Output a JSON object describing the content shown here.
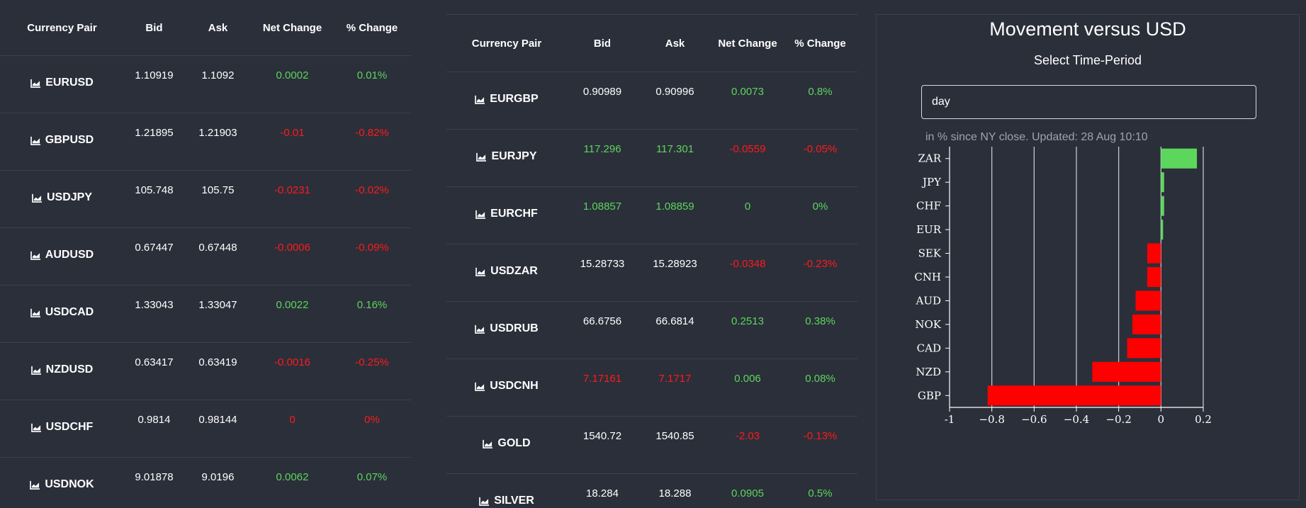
{
  "left_table": {
    "headers": [
      "Currency Pair",
      "Bid",
      "Ask",
      "Net Change",
      "% Change"
    ],
    "rows": [
      {
        "pair": "EURUSD",
        "bid": "1.10919",
        "ask": "1.1092",
        "net": "0.0002",
        "pct": "0.01%",
        "price_dir": "neu",
        "change_dir": "pos"
      },
      {
        "pair": "GBPUSD",
        "bid": "1.21895",
        "ask": "1.21903",
        "net": "-0.01",
        "pct": "-0.82%",
        "price_dir": "neu",
        "change_dir": "neg"
      },
      {
        "pair": "USDJPY",
        "bid": "105.748",
        "ask": "105.75",
        "net": "-0.0231",
        "pct": "-0.02%",
        "price_dir": "neu",
        "change_dir": "neg"
      },
      {
        "pair": "AUDUSD",
        "bid": "0.67447",
        "ask": "0.67448",
        "net": "-0.0006",
        "pct": "-0.09%",
        "price_dir": "neu",
        "change_dir": "neg"
      },
      {
        "pair": "USDCAD",
        "bid": "1.33043",
        "ask": "1.33047",
        "net": "0.0022",
        "pct": "0.16%",
        "price_dir": "neu",
        "change_dir": "pos"
      },
      {
        "pair": "NZDUSD",
        "bid": "0.63417",
        "ask": "0.63419",
        "net": "-0.0016",
        "pct": "-0.25%",
        "price_dir": "neu",
        "change_dir": "neg"
      },
      {
        "pair": "USDCHF",
        "bid": "0.9814",
        "ask": "0.98144",
        "net": "0",
        "pct": "0%",
        "price_dir": "neu",
        "change_dir": "neg"
      },
      {
        "pair": "USDNOK",
        "bid": "9.01878",
        "ask": "9.0196",
        "net": "0.0062",
        "pct": "0.07%",
        "price_dir": "neu",
        "change_dir": "pos"
      }
    ]
  },
  "mid_table": {
    "headers": [
      "Currency Pair",
      "Bid",
      "Ask",
      "Net Change",
      "% Change"
    ],
    "rows": [
      {
        "pair": "EURGBP",
        "bid": "0.90989",
        "ask": "0.90996",
        "net": "0.0073",
        "pct": "0.8%",
        "price_dir": "neu",
        "change_dir": "pos"
      },
      {
        "pair": "EURJPY",
        "bid": "117.296",
        "ask": "117.301",
        "net": "-0.0559",
        "pct": "-0.05%",
        "price_dir": "pos",
        "change_dir": "neg"
      },
      {
        "pair": "EURCHF",
        "bid": "1.08857",
        "ask": "1.08859",
        "net": "0",
        "pct": "0%",
        "price_dir": "pos",
        "change_dir": "pos"
      },
      {
        "pair": "USDZAR",
        "bid": "15.28733",
        "ask": "15.28923",
        "net": "-0.0348",
        "pct": "-0.23%",
        "price_dir": "neu",
        "change_dir": "neg"
      },
      {
        "pair": "USDRUB",
        "bid": "66.6756",
        "ask": "66.6814",
        "net": "0.2513",
        "pct": "0.38%",
        "price_dir": "neu",
        "change_dir": "pos"
      },
      {
        "pair": "USDCNH",
        "bid": "7.17161",
        "ask": "7.1717",
        "net": "0.006",
        "pct": "0.08%",
        "price_dir": "neg",
        "change_dir": "pos"
      },
      {
        "pair": "GOLD",
        "bid": "1540.72",
        "ask": "1540.85",
        "net": "-2.03",
        "pct": "-0.13%",
        "price_dir": "neu",
        "change_dir": "neg"
      },
      {
        "pair": "SILVER",
        "bid": "18.284",
        "ask": "18.288",
        "net": "0.0905",
        "pct": "0.5%",
        "price_dir": "neu",
        "change_dir": "pos"
      }
    ]
  },
  "movement_panel": {
    "title": "Movement versus USD",
    "subtitle": "Select Time-Period",
    "period_value": "day",
    "note": "in % since NY close. Updated: 28 Aug 10:10"
  },
  "colors": {
    "positive": "#5cd65c",
    "negative": "#ff1a1a",
    "background": "#2b2f3a"
  },
  "icons": {
    "pair_icon": "area-chart-icon"
  },
  "chart_data": {
    "type": "bar",
    "orientation": "horizontal",
    "categories": [
      "ZAR",
      "JPY",
      "CHF",
      "EUR",
      "SEK",
      "CNH",
      "AUD",
      "NOK",
      "CAD",
      "NZD",
      "GBP"
    ],
    "values": [
      0.17,
      0.015,
      0.015,
      0.01,
      -0.065,
      -0.065,
      -0.12,
      -0.135,
      -0.16,
      -0.325,
      -0.82
    ],
    "xlim": [
      -1,
      0.2
    ],
    "xticks": [
      -1,
      -0.8,
      -0.6,
      -0.4,
      -0.2,
      0,
      0.2
    ],
    "xtick_labels": [
      "-1",
      "−0.8",
      "−0.6",
      "−0.4",
      "−0.2",
      "0",
      "0.2"
    ],
    "grid": true,
    "positive_color": "#5cd65c",
    "negative_color": "#ff0000"
  }
}
